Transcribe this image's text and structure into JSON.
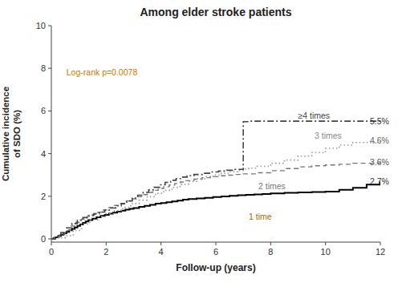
{
  "chart_data": {
    "type": "step",
    "title": "Among elder stroke patients",
    "x_label": "Follow-up (years)",
    "y_label": "Cumulative incidence\nof SDO (%)",
    "xlim": [
      0,
      12
    ],
    "ylim": [
      -0.15,
      10
    ],
    "xticks": [
      0,
      2,
      4,
      6,
      8,
      10,
      12
    ],
    "yticks": [
      0,
      2,
      4,
      6,
      8,
      10
    ],
    "series": [
      {
        "color": "#000000",
        "line_style": "solid",
        "x": [
          0,
          0.08,
          0.15,
          0.25,
          0.35,
          0.45,
          0.55,
          0.65,
          0.75,
          0.85,
          0.95,
          1.05,
          1.15,
          1.25,
          1.35,
          1.5,
          1.65,
          1.8,
          1.95,
          2.1,
          2.25,
          2.4,
          2.55,
          2.7,
          2.85,
          3.0,
          3.2,
          3.4,
          3.6,
          3.8,
          4.0,
          4.2,
          4.4,
          4.6,
          4.8,
          5.0,
          5.3,
          5.6,
          5.9,
          6.2,
          6.5,
          6.8,
          7.1,
          7.4,
          7.7,
          8.0,
          8.5,
          9.0,
          9.5,
          10.0,
          10.5,
          11.0,
          11.5,
          12.0
        ],
        "values": [
          0,
          0.04,
          0.08,
          0.14,
          0.2,
          0.26,
          0.33,
          0.4,
          0.47,
          0.54,
          0.61,
          0.68,
          0.75,
          0.82,
          0.88,
          0.95,
          1.02,
          1.08,
          1.13,
          1.18,
          1.23,
          1.28,
          1.33,
          1.37,
          1.41,
          1.45,
          1.5,
          1.55,
          1.6,
          1.65,
          1.68,
          1.72,
          1.76,
          1.8,
          1.84,
          1.87,
          1.9,
          1.93,
          1.96,
          1.99,
          2.02,
          2.05,
          2.07,
          2.09,
          2.11,
          2.13,
          2.16,
          2.18,
          2.2,
          2.22,
          2.3,
          2.4,
          2.55,
          2.7
        ]
      },
      {
        "color": "#777777",
        "line_style": "dashed",
        "x": [
          0,
          0.1,
          0.3,
          0.5,
          0.7,
          0.9,
          1.1,
          1.3,
          1.5,
          1.7,
          1.9,
          2.1,
          2.3,
          2.5,
          2.7,
          2.9,
          3.1,
          3.3,
          3.5,
          3.7,
          3.9,
          4.1,
          4.3,
          4.5,
          4.7,
          4.9,
          5.2,
          5.5,
          5.8,
          6.1,
          6.4,
          6.7,
          7.0,
          7.5,
          8.0,
          8.5,
          9.0,
          9.5,
          10.0,
          10.5,
          11.0,
          12.0
        ],
        "values": [
          0,
          0.08,
          0.22,
          0.4,
          0.6,
          0.78,
          0.92,
          1.05,
          1.15,
          1.25,
          1.36,
          1.47,
          1.57,
          1.67,
          1.78,
          1.88,
          1.98,
          2.08,
          2.18,
          2.28,
          2.37,
          2.45,
          2.53,
          2.6,
          2.67,
          2.73,
          2.8,
          2.87,
          2.92,
          2.96,
          2.99,
          3.02,
          3.05,
          3.1,
          3.2,
          3.3,
          3.38,
          3.43,
          3.47,
          3.5,
          3.55,
          3.6
        ]
      },
      {
        "color": "#999999",
        "line_style": "dotted",
        "x": [
          0,
          0.2,
          0.5,
          0.8,
          1.1,
          1.4,
          1.7,
          2.0,
          2.3,
          2.6,
          2.9,
          3.2,
          3.5,
          3.8,
          4.1,
          4.4,
          4.7,
          5.0,
          5.3,
          5.6,
          5.9,
          6.2,
          6.5,
          6.8,
          7.0,
          7.2,
          7.5,
          8.0,
          8.5,
          9.0,
          9.5,
          10.0,
          10.5,
          11.0,
          12.0
        ],
        "values": [
          0,
          0.05,
          0.15,
          0.4,
          0.7,
          0.9,
          1.05,
          1.18,
          1.32,
          1.48,
          1.65,
          1.82,
          1.98,
          2.14,
          2.28,
          2.42,
          2.56,
          2.7,
          2.82,
          2.92,
          3.0,
          3.08,
          3.15,
          3.22,
          3.28,
          3.32,
          3.4,
          3.55,
          3.7,
          3.88,
          4.05,
          4.25,
          4.4,
          4.52,
          4.6
        ]
      },
      {
        "color": "#444444",
        "line_style": "dashdot",
        "x": [
          0,
          0.15,
          0.35,
          0.55,
          0.75,
          0.95,
          1.15,
          1.35,
          1.55,
          1.75,
          1.95,
          2.15,
          2.35,
          2.55,
          2.75,
          2.95,
          3.15,
          3.35,
          3.55,
          3.75,
          3.95,
          4.15,
          4.35,
          4.55,
          4.75,
          4.95,
          5.2,
          5.5,
          5.8,
          6.1,
          6.4,
          6.7,
          7.0,
          7.2,
          7.5,
          8.0,
          9.0,
          10.0,
          11.0,
          12.0
        ],
        "values": [
          0,
          0.12,
          0.3,
          0.52,
          0.72,
          0.88,
          1.0,
          1.1,
          1.18,
          1.26,
          1.35,
          1.45,
          1.55,
          1.65,
          1.78,
          1.92,
          2.05,
          2.18,
          2.3,
          2.42,
          2.54,
          2.65,
          2.75,
          2.83,
          2.9,
          2.96,
          3.02,
          3.08,
          3.14,
          3.18,
          3.22,
          3.26,
          5.5,
          5.52,
          5.52,
          5.52,
          5.52,
          5.52,
          5.52,
          5.52
        ]
      }
    ],
    "annotations": [
      {
        "text": "Log-rank p=0.0078",
        "x": 0.55,
        "y": 7.8,
        "color": "#CC7700"
      },
      {
        "text": "1 time",
        "x": 7.2,
        "y": 1.05,
        "color": "#AA6600"
      },
      {
        "text": "2 times",
        "x": 7.55,
        "y": 2.45,
        "color": "#777777"
      },
      {
        "text": "3 times",
        "x": 9.6,
        "y": 4.82,
        "color": "#888888"
      },
      {
        "text": "≥4 times",
        "x": 9.0,
        "y": 5.78,
        "color": "#444444"
      },
      {
        "text": "5.5%",
        "x": 11.62,
        "y": 5.5,
        "color": "#333333"
      },
      {
        "text": "4.6%",
        "x": 11.62,
        "y": 4.6,
        "color": "#666666"
      },
      {
        "text": "3.6%",
        "x": 11.62,
        "y": 3.6,
        "color": "#555555"
      },
      {
        "text": "2.7%",
        "x": 11.62,
        "y": 2.7,
        "color": "#333333"
      }
    ]
  }
}
